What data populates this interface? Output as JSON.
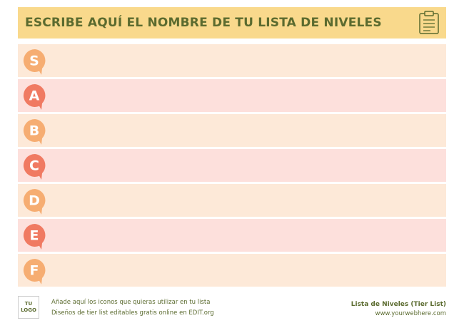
{
  "header": {
    "title": "ESCRIBE AQUÍ EL NOMBRE DE TU LISTA DE NIVELES"
  },
  "tiers": [
    {
      "label": "S"
    },
    {
      "label": "A"
    },
    {
      "label": "B"
    },
    {
      "label": "C"
    },
    {
      "label": "D"
    },
    {
      "label": "E"
    },
    {
      "label": "F"
    }
  ],
  "footer": {
    "logo": "TU LOGO",
    "notes": [
      "Añade aquí los iconos que quieras utilizar en tu lista",
      "Diseños de tier list editables gratis online en EDIT.org"
    ],
    "brand": "Lista de Niveles (Tier List)",
    "website": "www.yourwebhere.com"
  }
}
